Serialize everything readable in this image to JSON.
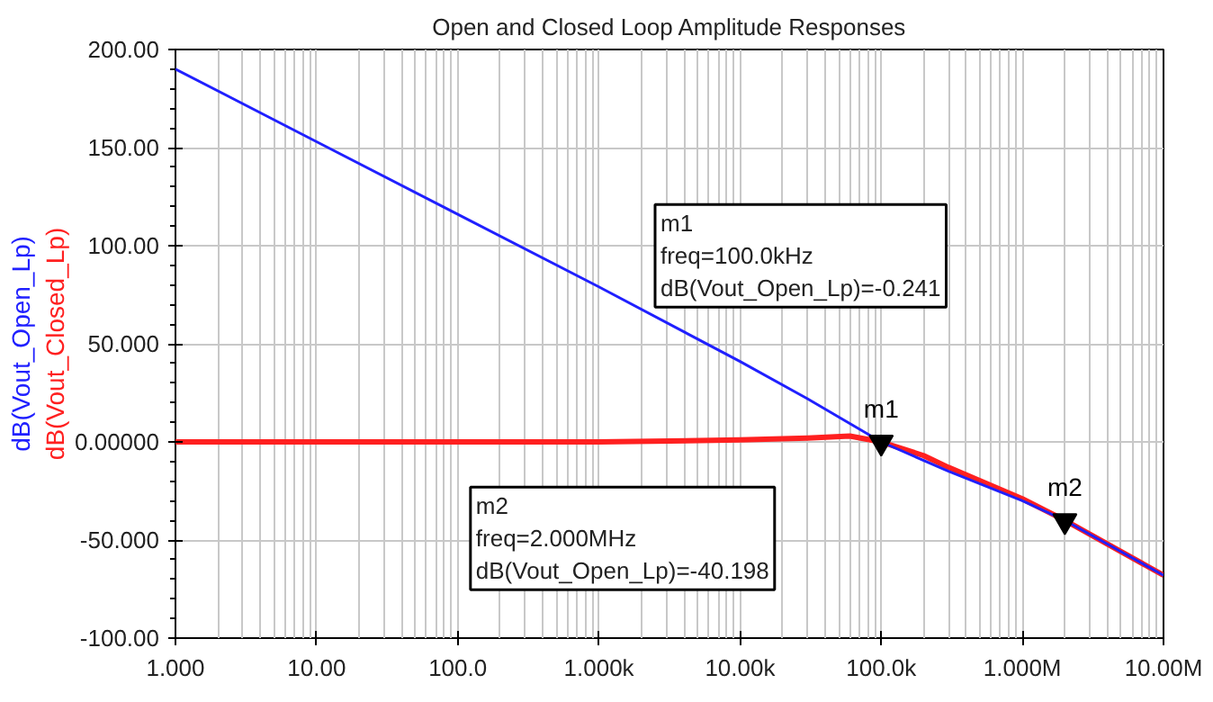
{
  "chart_data": {
    "type": "line",
    "title": "Open and Closed Loop Amplitude Responses",
    "log": "x",
    "grid": true,
    "xlim": [
      1,
      10000000
    ],
    "ylim": [
      -100,
      200
    ],
    "xticks": [
      {
        "value": 1,
        "label": "1.000"
      },
      {
        "value": 10,
        "label": "10.00"
      },
      {
        "value": 100,
        "label": "100.0"
      },
      {
        "value": 1000,
        "label": "1.000k"
      },
      {
        "value": 10000,
        "label": "10.00k"
      },
      {
        "value": 100000,
        "label": "100.0k"
      },
      {
        "value": 1000000,
        "label": "1.000M"
      },
      {
        "value": 10000000,
        "label": "10.00M"
      }
    ],
    "yticks": [
      {
        "value": 200,
        "label": "200.00"
      },
      {
        "value": 150,
        "label": "150.00"
      },
      {
        "value": 100,
        "label": "100.00"
      },
      {
        "value": 50,
        "label": "50.000"
      },
      {
        "value": 0,
        "label": "0.00000"
      },
      {
        "value": -50,
        "label": "-50.000"
      },
      {
        "value": -100,
        "label": "-100.00"
      }
    ],
    "series": [
      {
        "name": "dB(Vout_Closed_Lp)",
        "color": "#ff2020",
        "x": [
          1,
          10,
          100,
          1000,
          10000,
          30000,
          60000,
          100000,
          200000,
          300000,
          1000000,
          2000000,
          10000000
        ],
        "values": [
          0,
          0,
          0,
          0,
          1,
          2,
          3,
          0,
          -7,
          -13,
          -29,
          -40,
          -68
        ]
      },
      {
        "name": "dB(Vout_Open_Lp)",
        "color": "#2020ff",
        "x": [
          1,
          10,
          100,
          1000,
          10000,
          30000,
          100000,
          300000,
          1000000,
          2000000,
          10000000
        ],
        "values": [
          190,
          153,
          116,
          79,
          41,
          22,
          0,
          -15,
          -30,
          -40,
          -68
        ]
      }
    ],
    "annotations": [
      {
        "text": "m1",
        "x": 100000,
        "y": -0.241
      },
      {
        "text": "m2",
        "x": 2000000,
        "y": -40.198
      },
      "m1\nfreq=100.0kHz\ndB(Vout_Open_Lp)=-0.241",
      "m2\nfreq=2.000MHz\ndB(Vout_Open_Lp)=-40.198"
    ]
  }
}
